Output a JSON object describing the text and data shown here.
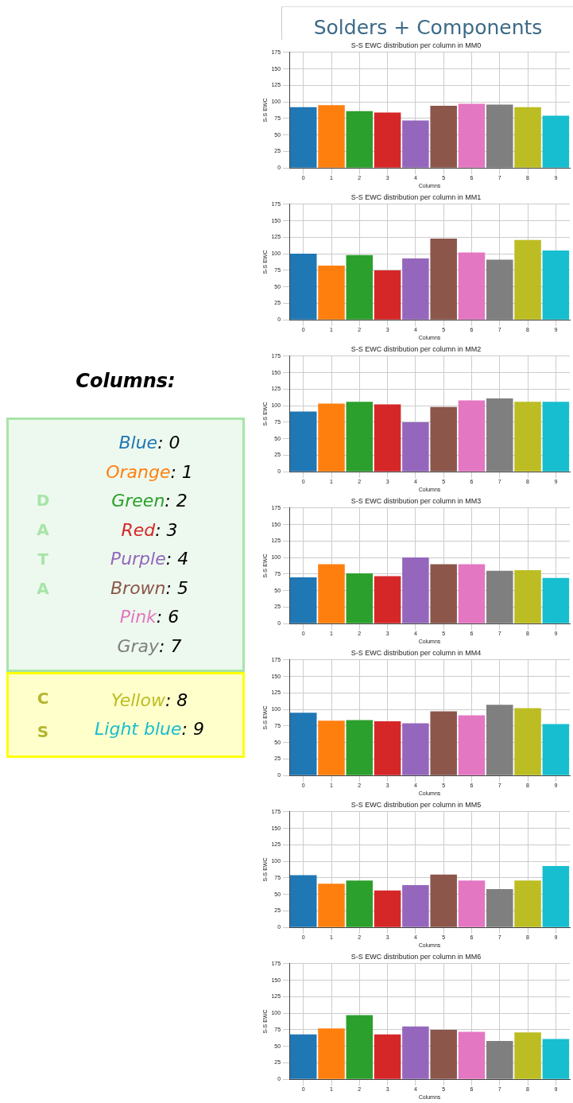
{
  "chart_data": [
    {
      "type": "other",
      "title": "Solders + Components",
      "color": "#3d6a87"
    },
    {
      "type": "bar",
      "title": "S-S EWC distribution per column in MM0",
      "xlabel": "Columns",
      "ylabel": "S-S EWC",
      "categories": [
        "0",
        "1",
        "2",
        "3",
        "4",
        "5",
        "6",
        "7",
        "8",
        "9"
      ],
      "values": [
        92,
        95,
        86,
        84,
        72,
        94,
        97,
        96,
        92,
        79
      ],
      "colors": [
        "#1f77b4",
        "#ff7f0e",
        "#2ca02c",
        "#d62728",
        "#9467bd",
        "#8c564b",
        "#e377c2",
        "#7f7f7f",
        "#bcbd22",
        "#17becf"
      ],
      "ylim": [
        0,
        175
      ],
      "yticks": [
        0,
        25,
        50,
        75,
        100,
        125,
        150,
        175
      ],
      "grid": true
    },
    {
      "type": "bar",
      "title": "S-S EWC distribution per column in MM1",
      "xlabel": "Columns",
      "ylabel": "S-S EWC",
      "categories": [
        "0",
        "1",
        "2",
        "3",
        "4",
        "5",
        "6",
        "7",
        "8",
        "9"
      ],
      "values": [
        100,
        82,
        98,
        75,
        93,
        123,
        102,
        91,
        121,
        105
      ],
      "colors": [
        "#1f77b4",
        "#ff7f0e",
        "#2ca02c",
        "#d62728",
        "#9467bd",
        "#8c564b",
        "#e377c2",
        "#7f7f7f",
        "#bcbd22",
        "#17becf"
      ],
      "ylim": [
        0,
        175
      ],
      "yticks": [
        0,
        25,
        50,
        75,
        100,
        125,
        150,
        175
      ],
      "grid": true
    },
    {
      "type": "bar",
      "title": "S-S EWC distribution per column in MM2",
      "xlabel": "Columns",
      "ylabel": "S-S EWC",
      "categories": [
        "0",
        "1",
        "2",
        "3",
        "4",
        "5",
        "6",
        "7",
        "8",
        "9"
      ],
      "values": [
        91,
        103,
        106,
        102,
        75,
        98,
        108,
        111,
        106,
        106
      ],
      "colors": [
        "#1f77b4",
        "#ff7f0e",
        "#2ca02c",
        "#d62728",
        "#9467bd",
        "#8c564b",
        "#e377c2",
        "#7f7f7f",
        "#bcbd22",
        "#17becf"
      ],
      "ylim": [
        0,
        175
      ],
      "yticks": [
        0,
        25,
        50,
        75,
        100,
        125,
        150,
        175
      ],
      "grid": true
    },
    {
      "type": "bar",
      "title": "S-S EWC distribution per column in MM3",
      "xlabel": "Columns",
      "ylabel": "S-S EWC",
      "categories": [
        "0",
        "1",
        "2",
        "3",
        "4",
        "5",
        "6",
        "7",
        "8",
        "9"
      ],
      "values": [
        70,
        90,
        76,
        72,
        100,
        90,
        90,
        80,
        81,
        69
      ],
      "colors": [
        "#1f77b4",
        "#ff7f0e",
        "#2ca02c",
        "#d62728",
        "#9467bd",
        "#8c564b",
        "#e377c2",
        "#7f7f7f",
        "#bcbd22",
        "#17becf"
      ],
      "ylim": [
        0,
        175
      ],
      "yticks": [
        0,
        25,
        50,
        75,
        100,
        125,
        150,
        175
      ],
      "grid": true
    },
    {
      "type": "bar",
      "title": "S-S EWC distribution per column in MM4",
      "xlabel": "Columns",
      "ylabel": "S-S EWC",
      "categories": [
        "0",
        "1",
        "2",
        "3",
        "4",
        "5",
        "6",
        "7",
        "8",
        "9"
      ],
      "values": [
        95,
        83,
        84,
        82,
        79,
        97,
        91,
        107,
        102,
        78
      ],
      "colors": [
        "#1f77b4",
        "#ff7f0e",
        "#2ca02c",
        "#d62728",
        "#9467bd",
        "#8c564b",
        "#e377c2",
        "#7f7f7f",
        "#bcbd22",
        "#17becf"
      ],
      "ylim": [
        0,
        175
      ],
      "yticks": [
        0,
        25,
        50,
        75,
        100,
        125,
        150,
        175
      ],
      "grid": true
    },
    {
      "type": "bar",
      "title": "S-S EWC distribution per column in MM5",
      "xlabel": "Columns",
      "ylabel": "S-S EWC",
      "categories": [
        "0",
        "1",
        "2",
        "3",
        "4",
        "5",
        "6",
        "7",
        "8",
        "9"
      ],
      "values": [
        79,
        66,
        71,
        56,
        64,
        80,
        71,
        58,
        71,
        93
      ],
      "colors": [
        "#1f77b4",
        "#ff7f0e",
        "#2ca02c",
        "#d62728",
        "#9467bd",
        "#8c564b",
        "#e377c2",
        "#7f7f7f",
        "#bcbd22",
        "#17becf"
      ],
      "ylim": [
        0,
        175
      ],
      "yticks": [
        0,
        25,
        50,
        75,
        100,
        125,
        150,
        175
      ],
      "grid": true
    },
    {
      "type": "bar",
      "title": "S-S EWC distribution per column in MM6",
      "xlabel": "Columns",
      "ylabel": "S-S EWC",
      "categories": [
        "0",
        "1",
        "2",
        "3",
        "4",
        "5",
        "6",
        "7",
        "8",
        "9"
      ],
      "values": [
        68,
        77,
        97,
        68,
        80,
        75,
        72,
        58,
        71,
        61
      ],
      "colors": [
        "#1f77b4",
        "#ff7f0e",
        "#2ca02c",
        "#d62728",
        "#9467bd",
        "#8c564b",
        "#e377c2",
        "#7f7f7f",
        "#bcbd22",
        "#17becf"
      ],
      "ylim": [
        0,
        175
      ],
      "yticks": [
        0,
        25,
        50,
        75,
        100,
        125,
        150,
        175
      ],
      "grid": true
    },
    {
      "type": "other",
      "title": "Columns:",
      "legend_title": "DATA",
      "color": "#a8e4a8",
      "annotations": [
        "Blue: 0",
        "Orange: 1",
        "Green: 2",
        "Red: 3",
        "Purple: 4",
        "Brown: 5",
        "Pink: 6",
        "Gray: 7"
      ]
    },
    {
      "type": "other",
      "legend_title": "CS",
      "color": "#b5b530",
      "annotations": [
        "Yellow: 8",
        "Light blue: 9"
      ]
    }
  ]
}
